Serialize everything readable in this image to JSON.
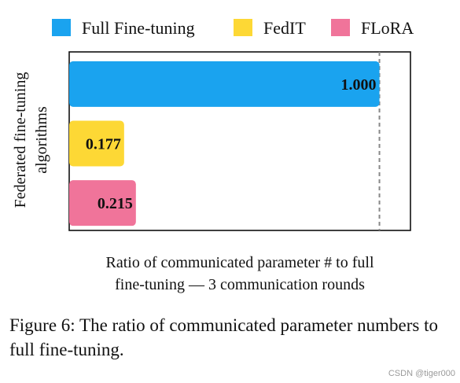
{
  "chart_data": {
    "type": "bar",
    "orientation": "horizontal",
    "categories": [
      "Full Fine-tuning",
      "FedIT",
      "FLoRA"
    ],
    "values": [
      1.0,
      0.177,
      0.215
    ],
    "value_labels": [
      "1.000",
      "0.177",
      "0.215"
    ],
    "colors": [
      "#1aa3ef",
      "#fdd835",
      "#f0749a"
    ],
    "legend": [
      "Full Fine-tuning",
      "FedIT",
      "FLoRA"
    ],
    "legend_position": "top",
    "xlabel_lines": [
      "Ratio of communicated parameter # to full",
      "fine-tuning — 3 communication rounds"
    ],
    "ylabel_lines": [
      "Federated fine-tuning",
      "algorithms"
    ],
    "reference_line": 1.0,
    "xlim": [
      0,
      1.1
    ],
    "grid": false
  },
  "caption": "Figure 6: The ratio of communicated parameter numbers to full fine-tuning.",
  "watermark": "CSDN @tiger000"
}
